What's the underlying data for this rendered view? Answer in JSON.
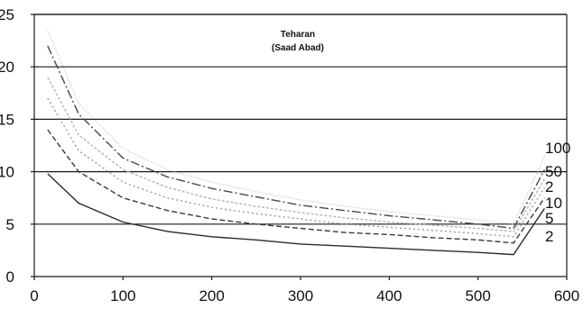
{
  "chart_data": {
    "type": "line",
    "title": "Teharan",
    "subtitle": "(Saad Abad)",
    "xlabel": "",
    "ylabel": "",
    "xlim": [
      0,
      600
    ],
    "ylim": [
      0,
      25
    ],
    "x_ticks": [
      0,
      100,
      200,
      300,
      400,
      500,
      600
    ],
    "y_ticks": [
      0,
      5,
      10,
      15,
      20,
      25
    ],
    "grid": "horizontal",
    "x": [
      15,
      50,
      100,
      150,
      200,
      250,
      300,
      350,
      400,
      450,
      500,
      540
    ],
    "series": [
      {
        "name": "2",
        "color": "#2b2b2b",
        "dash": "",
        "values": [
          9.8,
          7.0,
          5.2,
          4.3,
          3.8,
          3.5,
          3.1,
          2.9,
          2.7,
          2.5,
          2.3,
          2.1
        ],
        "end": [
          575,
          6.5
        ]
      },
      {
        "name": "5",
        "color": "#3a3a3a",
        "dash": "6 3",
        "values": [
          14.0,
          10.0,
          7.5,
          6.3,
          5.5,
          5.0,
          4.6,
          4.2,
          4.0,
          3.7,
          3.5,
          3.2
        ],
        "end": [
          575,
          7.5
        ]
      },
      {
        "name": "10",
        "color": "#9a9a9a",
        "dash": "2 3",
        "values": [
          17.0,
          12.0,
          9.0,
          7.5,
          6.6,
          6.0,
          5.5,
          5.0,
          4.7,
          4.4,
          4.1,
          3.8
        ],
        "end": [
          575,
          8.5
        ]
      },
      {
        "name": "2",
        "color": "#b5b5b5",
        "dash": "3 2",
        "values": [
          19.0,
          13.5,
          10.2,
          8.5,
          7.4,
          6.7,
          6.1,
          5.6,
          5.2,
          4.9,
          4.6,
          4.3
        ],
        "end": [
          575,
          9.3
        ]
      },
      {
        "name": "50",
        "color": "#4a4a4a",
        "dash": "10 3 2 3",
        "values": [
          22.0,
          15.5,
          11.3,
          9.5,
          8.4,
          7.6,
          6.8,
          6.3,
          5.8,
          5.4,
          5.0,
          4.6
        ],
        "end": [
          575,
          10.2
        ]
      },
      {
        "name": "100",
        "color": "#c2c2c2",
        "dash": "1 2",
        "values": [
          23.5,
          16.5,
          12.2,
          10.2,
          9.0,
          8.1,
          7.3,
          6.7,
          6.2,
          5.8,
          5.4,
          5.0
        ],
        "end": [
          575,
          11.5
        ]
      }
    ]
  }
}
